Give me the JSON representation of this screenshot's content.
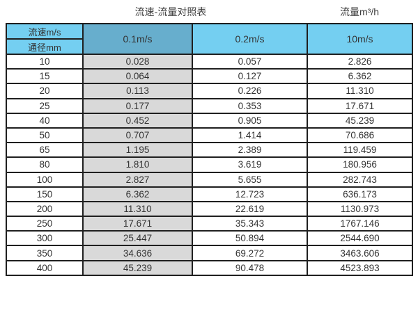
{
  "page": {
    "title_left": "流速-流量对照表",
    "title_right": "流量m³/h"
  },
  "table": {
    "corner_top": "流速m/s",
    "corner_bottom": "通径mm",
    "velocity_headers": [
      "0.1m/s",
      "0.2m/s",
      "10m/s"
    ],
    "rows": [
      [
        "10",
        "0.028",
        "0.057",
        "2.826"
      ],
      [
        "15",
        "0.064",
        "0.127",
        "6.362"
      ],
      [
        "20",
        "0.113",
        "0.226",
        "11.310"
      ],
      [
        "25",
        "0.177",
        "0.353",
        "17.671"
      ],
      [
        "40",
        "0.452",
        "0.905",
        "45.239"
      ],
      [
        "50",
        "0.707",
        "1.414",
        "70.686"
      ],
      [
        "65",
        "1.195",
        "2.389",
        "119.459"
      ],
      [
        "80",
        "1.810",
        "3.619",
        "180.956"
      ],
      [
        "100",
        "2.827",
        "5.655",
        "282.743"
      ],
      [
        "150",
        "6.362",
        "12.723",
        "636.173"
      ],
      [
        "200",
        "11.310",
        "22.619",
        "1130.973"
      ],
      [
        "250",
        "17.671",
        "35.343",
        "1767.146"
      ],
      [
        "300",
        "25.447",
        "50.894",
        "2544.690"
      ],
      [
        "350",
        "34.636",
        "69.272",
        "3463.606"
      ],
      [
        "400",
        "45.239",
        "90.478",
        "4523.893"
      ]
    ]
  },
  "colors": {
    "header_light": "#74CFF1",
    "header_dark": "#67AECD",
    "col_gray": "#D9D9D9",
    "border_color": "#1F1F1F",
    "text_color": "#333333",
    "title_color": "#3D3D3D"
  },
  "chart_data": {
    "type": "table",
    "title": "流速-流量对照表",
    "unit_note": "流量m³/h",
    "row_header_label": "通径mm",
    "column_header_label": "流速m/s",
    "columns": [
      "通径mm",
      "0.1m/s",
      "0.2m/s",
      "10m/s"
    ],
    "diameters_mm": [
      10,
      15,
      20,
      25,
      40,
      50,
      65,
      80,
      100,
      150,
      200,
      250,
      300,
      350,
      400
    ],
    "series": [
      {
        "name": "0.1m/s",
        "values": [
          0.028,
          0.064,
          0.113,
          0.177,
          0.452,
          0.707,
          1.195,
          1.81,
          2.827,
          6.362,
          11.31,
          17.671,
          25.447,
          34.636,
          45.239
        ]
      },
      {
        "name": "0.2m/s",
        "values": [
          0.057,
          0.127,
          0.226,
          0.353,
          0.905,
          1.414,
          2.389,
          3.619,
          5.655,
          12.723,
          22.619,
          35.343,
          50.894,
          69.272,
          90.478
        ]
      },
      {
        "name": "10m/s",
        "values": [
          2.826,
          6.362,
          11.31,
          17.671,
          45.239,
          70.686,
          119.459,
          180.956,
          282.743,
          636.173,
          1130.973,
          1767.146,
          2544.69,
          3463.606,
          4523.893
        ]
      }
    ]
  }
}
